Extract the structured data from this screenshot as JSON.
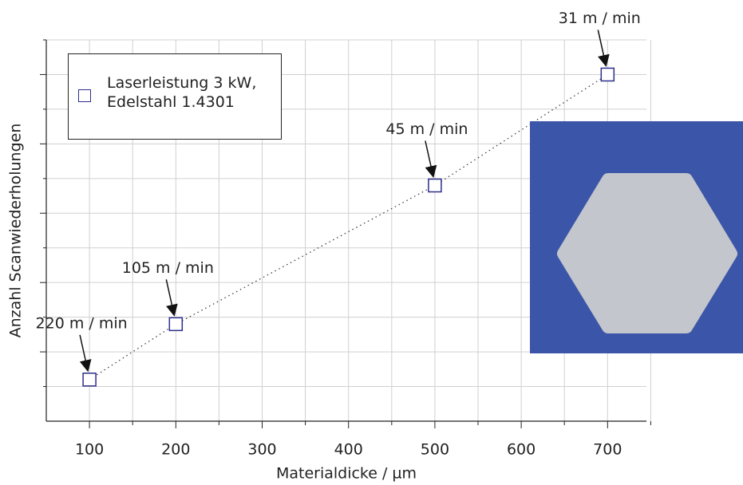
{
  "chart_data": {
    "type": "scatter",
    "xlabel": "Materialdicke / µm",
    "ylabel": "Anzahl Scanwiederholungen",
    "xlim": [
      50,
      745
    ],
    "xticks": [
      100,
      200,
      300,
      400,
      500,
      600,
      700
    ],
    "xminorticks": [
      150,
      250,
      350,
      450,
      550,
      650,
      750
    ],
    "ylim": [
      0,
      11
    ],
    "yticks": [
      1,
      2,
      3,
      4,
      5,
      6,
      7,
      8,
      9,
      10,
      11
    ],
    "grid": true,
    "trendline": "dotted",
    "legend": "upper left",
    "series": [
      {
        "name": "Laserleistung 3 kW, Edelstahl 1.4301",
        "color": "#2e2e8c",
        "x": [
          100,
          200,
          500,
          700
        ],
        "values": [
          1.2,
          2.8,
          6.8,
          10
        ]
      }
    ],
    "annotations": [
      {
        "text": "220 m / min",
        "point": 0
      },
      {
        "text": "105 m / min",
        "point": 1
      },
      {
        "text": "45 m / min",
        "point": 2
      },
      {
        "text": "31 m / min",
        "point": 3
      }
    ]
  }
}
